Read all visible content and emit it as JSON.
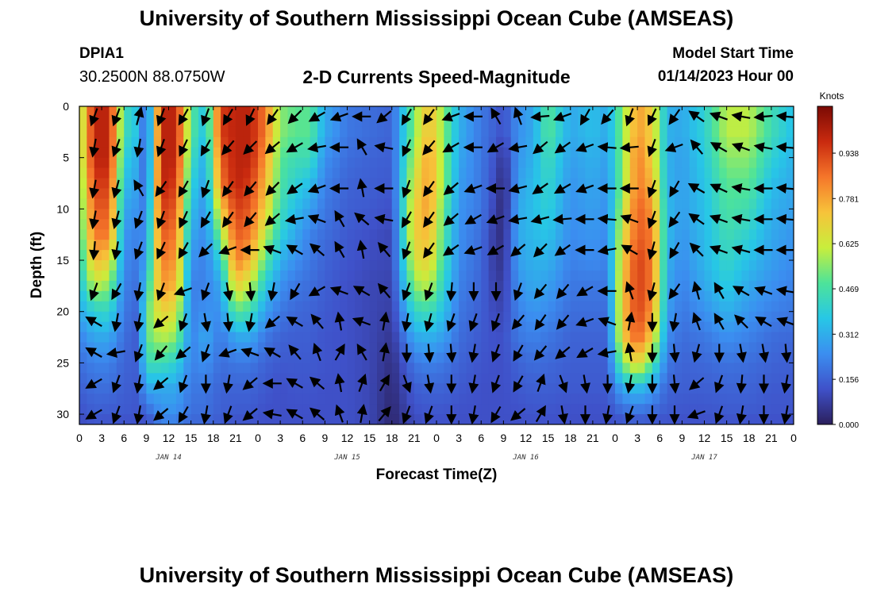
{
  "header": {
    "title": "University of Southern Mississippi Ocean Cube (AMSEAS)",
    "station": "DPIA1",
    "coords": "30.2500N  88.0750W",
    "plot_title": "2-D Currents Speed-Magnitude",
    "start_label": "Model Start Time",
    "start_value": "01/14/2023 Hour 00"
  },
  "footer": {
    "title": "University of Southern Mississippi Ocean Cube (AMSEAS)"
  },
  "chart_data": {
    "type": "heatmap",
    "xlabel": "Forecast Time(Z)",
    "ylabel": "Depth (ft)",
    "xlim": [
      0,
      96
    ],
    "ylim": [
      0,
      31
    ],
    "y_inverted": true,
    "x_tick_labels": [
      "0",
      "3",
      "6",
      "9",
      "12",
      "15",
      "18",
      "21",
      "0",
      "3",
      "6",
      "9",
      "12",
      "15",
      "18",
      "21",
      "0",
      "3",
      "6",
      "9",
      "12",
      "15",
      "18",
      "21",
      "0",
      "3",
      "6",
      "9",
      "12",
      "15",
      "18",
      "21",
      "0"
    ],
    "y_ticks": [
      0,
      5,
      10,
      15,
      20,
      25,
      30
    ],
    "day_labels": [
      {
        "text": "JAN 14",
        "hour": 12
      },
      {
        "text": "JAN 15",
        "hour": 36
      },
      {
        "text": "JAN 16",
        "hour": 60
      },
      {
        "text": "JAN 17",
        "hour": 84
      }
    ],
    "colorbar": {
      "title": "Knots",
      "ticks": [
        "0.000",
        "0.156",
        "0.312",
        "0.469",
        "0.625",
        "0.781",
        "0.938"
      ],
      "range": [
        0,
        1.1
      ],
      "colors": [
        "#2b1f5c",
        "#3f51c9",
        "#3b8ef0",
        "#27c7e6",
        "#4de39a",
        "#c8ee3c",
        "#f7c33a",
        "#f5762a",
        "#c92a0f",
        "#7a0a04"
      ]
    },
    "speed_columns": [
      {
        "hour": 0,
        "speeds": [
          0.55,
          0.55,
          0.55,
          0.5,
          0.48,
          0.45,
          0.4,
          0.35,
          0.3,
          0.22,
          0.18,
          0.15,
          0.12,
          0.1
        ]
      },
      {
        "hour": 2,
        "speeds": [
          1.0,
          1.0,
          1.0,
          0.95,
          0.9,
          0.85,
          0.75,
          0.6,
          0.4,
          0.3,
          0.22,
          0.18,
          0.15,
          0.12
        ]
      },
      {
        "hour": 4,
        "speeds": [
          1.0,
          1.0,
          1.0,
          0.95,
          0.9,
          0.85,
          0.7,
          0.55,
          0.42,
          0.3,
          0.22,
          0.18,
          0.14,
          0.12
        ]
      },
      {
        "hour": 6,
        "speeds": [
          0.45,
          0.45,
          0.4,
          0.35,
          0.3,
          0.26,
          0.24,
          0.22,
          0.2,
          0.18,
          0.16,
          0.15,
          0.14,
          0.12
        ]
      },
      {
        "hour": 8,
        "speeds": [
          0.35,
          0.35,
          0.3,
          0.28,
          0.25,
          0.22,
          0.2,
          0.18,
          0.16,
          0.14,
          0.15,
          0.14,
          0.13,
          0.12
        ]
      },
      {
        "hour": 9,
        "speeds": [
          0.1,
          0.1,
          0.12,
          0.14,
          0.2,
          0.25,
          0.3,
          0.4,
          0.5,
          0.5,
          0.45,
          0.3,
          0.15,
          0.1
        ]
      },
      {
        "hour": 11,
        "speeds": [
          1.0,
          1.0,
          1.0,
          1.0,
          0.95,
          0.9,
          0.85,
          0.8,
          0.7,
          0.6,
          0.45,
          0.3,
          0.25,
          0.2
        ]
      },
      {
        "hour": 13,
        "speeds": [
          1.0,
          1.0,
          1.0,
          0.95,
          0.9,
          0.85,
          0.8,
          0.75,
          0.65,
          0.55,
          0.4,
          0.3,
          0.25,
          0.2
        ]
      },
      {
        "hour": 15,
        "speeds": [
          0.5,
          0.5,
          0.45,
          0.4,
          0.35,
          0.3,
          0.25,
          0.22,
          0.22,
          0.22,
          0.22,
          0.2,
          0.18,
          0.16
        ]
      },
      {
        "hour": 17,
        "speeds": [
          0.35,
          0.35,
          0.3,
          0.28,
          0.25,
          0.24,
          0.22,
          0.22,
          0.25,
          0.3,
          0.25,
          0.2,
          0.18,
          0.16
        ]
      },
      {
        "hour": 19,
        "speeds": [
          0.95,
          0.95,
          0.9,
          0.85,
          0.7,
          0.55,
          0.4,
          0.3,
          0.25,
          0.2,
          0.18,
          0.16,
          0.15,
          0.14
        ]
      },
      {
        "hour": 21,
        "speeds": [
          1.0,
          1.0,
          1.0,
          1.0,
          0.95,
          0.9,
          0.85,
          0.7,
          0.5,
          0.3,
          0.2,
          0.16,
          0.14,
          0.12
        ]
      },
      {
        "hour": 23,
        "speeds": [
          1.0,
          1.0,
          1.0,
          0.95,
          0.9,
          0.85,
          0.75,
          0.6,
          0.45,
          0.3,
          0.2,
          0.16,
          0.14,
          0.12
        ]
      },
      {
        "hour": 25,
        "speeds": [
          0.85,
          0.85,
          0.8,
          0.75,
          0.7,
          0.6,
          0.5,
          0.38,
          0.28,
          0.2,
          0.16,
          0.14,
          0.12,
          0.12
        ]
      },
      {
        "hour": 27,
        "speeds": [
          0.55,
          0.55,
          0.5,
          0.48,
          0.45,
          0.4,
          0.32,
          0.25,
          0.2,
          0.16,
          0.14,
          0.12,
          0.12,
          0.12
        ]
      },
      {
        "hour": 29,
        "speeds": [
          0.5,
          0.5,
          0.45,
          0.4,
          0.35,
          0.3,
          0.25,
          0.2,
          0.17,
          0.15,
          0.14,
          0.13,
          0.12,
          0.12
        ]
      },
      {
        "hour": 31,
        "speeds": [
          0.5,
          0.5,
          0.45,
          0.35,
          0.28,
          0.22,
          0.2,
          0.18,
          0.16,
          0.15,
          0.14,
          0.13,
          0.12,
          0.12
        ]
      },
      {
        "hour": 33,
        "speeds": [
          0.3,
          0.3,
          0.25,
          0.22,
          0.2,
          0.18,
          0.16,
          0.15,
          0.14,
          0.13,
          0.13,
          0.12,
          0.12,
          0.12
        ]
      },
      {
        "hour": 36,
        "speeds": [
          0.2,
          0.2,
          0.18,
          0.16,
          0.15,
          0.14,
          0.13,
          0.12,
          0.12,
          0.12,
          0.12,
          0.12,
          0.12,
          0.12
        ]
      },
      {
        "hour": 39,
        "speeds": [
          0.18,
          0.18,
          0.16,
          0.15,
          0.14,
          0.12,
          0.11,
          0.1,
          0.1,
          0.1,
          0.1,
          0.1,
          0.1,
          0.1
        ]
      },
      {
        "hour": 42,
        "speeds": [
          0.16,
          0.16,
          0.15,
          0.14,
          0.12,
          0.1,
          0.1,
          0.09,
          0.08,
          0.06,
          0.04,
          0.03,
          0.02,
          0.02
        ]
      },
      {
        "hour": 45,
        "speeds": [
          0.55,
          0.55,
          0.6,
          0.65,
          0.7,
          0.7,
          0.65,
          0.55,
          0.42,
          0.3,
          0.2,
          0.15,
          0.12,
          0.1
        ]
      },
      {
        "hour": 47,
        "speeds": [
          0.75,
          0.75,
          0.8,
          0.8,
          0.8,
          0.75,
          0.7,
          0.6,
          0.45,
          0.32,
          0.22,
          0.16,
          0.13,
          0.12
        ]
      },
      {
        "hour": 49,
        "speeds": [
          0.55,
          0.55,
          0.55,
          0.55,
          0.5,
          0.48,
          0.45,
          0.4,
          0.35,
          0.28,
          0.2,
          0.16,
          0.13,
          0.12
        ]
      },
      {
        "hour": 51,
        "speeds": [
          0.32,
          0.32,
          0.3,
          0.28,
          0.26,
          0.25,
          0.24,
          0.22,
          0.2,
          0.18,
          0.16,
          0.14,
          0.12,
          0.12
        ]
      },
      {
        "hour": 54,
        "speeds": [
          0.2,
          0.2,
          0.2,
          0.2,
          0.2,
          0.18,
          0.17,
          0.16,
          0.15,
          0.14,
          0.13,
          0.12,
          0.12,
          0.12
        ]
      },
      {
        "hour": 56,
        "speeds": [
          0.15,
          0.15,
          0.12,
          0.1,
          0.08,
          0.06,
          0.06,
          0.08,
          0.1,
          0.12,
          0.12,
          0.12,
          0.12,
          0.12
        ]
      },
      {
        "hour": 57,
        "speeds": [
          0.12,
          0.12,
          0.05,
          0.02,
          0.02,
          0.04,
          0.06,
          0.08,
          0.1,
          0.12,
          0.12,
          0.12,
          0.12,
          0.12
        ]
      },
      {
        "hour": 59,
        "speeds": [
          0.25,
          0.25,
          0.26,
          0.28,
          0.3,
          0.3,
          0.28,
          0.25,
          0.22,
          0.2,
          0.16,
          0.14,
          0.12,
          0.12
        ]
      },
      {
        "hour": 61,
        "speeds": [
          0.3,
          0.3,
          0.32,
          0.34,
          0.35,
          0.34,
          0.32,
          0.3,
          0.26,
          0.22,
          0.18,
          0.15,
          0.13,
          0.12
        ]
      },
      {
        "hour": 63,
        "speeds": [
          0.5,
          0.5,
          0.45,
          0.42,
          0.4,
          0.36,
          0.32,
          0.28,
          0.24,
          0.2,
          0.17,
          0.15,
          0.13,
          0.12
        ]
      },
      {
        "hour": 66,
        "speeds": [
          0.3,
          0.3,
          0.28,
          0.26,
          0.25,
          0.24,
          0.22,
          0.2,
          0.18,
          0.16,
          0.15,
          0.14,
          0.12,
          0.12
        ]
      },
      {
        "hour": 69,
        "speeds": [
          0.35,
          0.35,
          0.32,
          0.3,
          0.28,
          0.26,
          0.24,
          0.2,
          0.18,
          0.16,
          0.15,
          0.14,
          0.12,
          0.12
        ]
      },
      {
        "hour": 71,
        "speeds": [
          0.3,
          0.3,
          0.28,
          0.26,
          0.25,
          0.24,
          0.22,
          0.2,
          0.18,
          0.16,
          0.15,
          0.14,
          0.12,
          0.12
        ]
      },
      {
        "hour": 73,
        "speeds": [
          0.55,
          0.55,
          0.55,
          0.55,
          0.6,
          0.65,
          0.7,
          0.72,
          0.72,
          0.7,
          0.55,
          0.3,
          0.16,
          0.12
        ]
      },
      {
        "hour": 75,
        "speeds": [
          0.8,
          0.8,
          0.85,
          0.85,
          0.9,
          0.9,
          0.95,
          0.95,
          0.95,
          0.9,
          0.7,
          0.35,
          0.18,
          0.13
        ]
      },
      {
        "hour": 77,
        "speeds": [
          0.7,
          0.7,
          0.7,
          0.75,
          0.8,
          0.85,
          0.85,
          0.85,
          0.8,
          0.7,
          0.5,
          0.28,
          0.16,
          0.12
        ]
      },
      {
        "hour": 79,
        "speeds": [
          0.32,
          0.32,
          0.32,
          0.32,
          0.34,
          0.34,
          0.32,
          0.3,
          0.28,
          0.24,
          0.2,
          0.16,
          0.14,
          0.12
        ]
      },
      {
        "hour": 81,
        "speeds": [
          0.3,
          0.3,
          0.28,
          0.28,
          0.28,
          0.26,
          0.24,
          0.22,
          0.2,
          0.18,
          0.16,
          0.15,
          0.13,
          0.12
        ]
      },
      {
        "hour": 84,
        "speeds": [
          0.4,
          0.4,
          0.38,
          0.36,
          0.35,
          0.34,
          0.33,
          0.3,
          0.25,
          0.2,
          0.17,
          0.15,
          0.13,
          0.12
        ]
      },
      {
        "hour": 87,
        "speeds": [
          0.6,
          0.6,
          0.55,
          0.5,
          0.48,
          0.45,
          0.42,
          0.38,
          0.32,
          0.25,
          0.19,
          0.16,
          0.14,
          0.12
        ]
      },
      {
        "hour": 90,
        "speeds": [
          0.6,
          0.6,
          0.55,
          0.5,
          0.45,
          0.4,
          0.35,
          0.3,
          0.26,
          0.22,
          0.18,
          0.16,
          0.14,
          0.12
        ]
      },
      {
        "hour": 93,
        "speeds": [
          0.45,
          0.45,
          0.4,
          0.35,
          0.32,
          0.3,
          0.28,
          0.25,
          0.22,
          0.18,
          0.16,
          0.14,
          0.13,
          0.12
        ]
      },
      {
        "hour": 96,
        "speeds": [
          0.35,
          0.35,
          0.32,
          0.3,
          0.28,
          0.26,
          0.24,
          0.22,
          0.2,
          0.17,
          0.15,
          0.14,
          0.13,
          0.12
        ]
      }
    ],
    "speed_depths": [
      0,
      2.5,
      5,
      7.5,
      10,
      12.5,
      15,
      17.5,
      20,
      22.5,
      25,
      27.5,
      30,
      31
    ],
    "vector_depths": [
      1,
      4,
      8,
      11,
      14,
      18,
      21,
      24,
      27,
      30
    ],
    "vector_hours": [
      2,
      5,
      8,
      11,
      14,
      17,
      20,
      23,
      26,
      29,
      32,
      35,
      38,
      41,
      44,
      47,
      50,
      53,
      56,
      59,
      62,
      65,
      68,
      71,
      74,
      77,
      80,
      83,
      86,
      89,
      92,
      95
    ],
    "vector_directions_deg": [
      [
        200,
        200,
        15,
        200,
        210,
        200,
        210,
        205,
        215,
        225,
        240,
        250,
        270,
        230,
        210,
        215,
        250,
        270,
        330,
        340,
        265,
        250,
        210,
        220,
        200,
        205,
        215,
        305,
        290,
        280,
        265,
        275
      ],
      [
        190,
        200,
        190,
        200,
        205,
        210,
        220,
        225,
        230,
        240,
        260,
        270,
        330,
        280,
        205,
        220,
        240,
        270,
        240,
        260,
        230,
        235,
        250,
        275,
        265,
        200,
        250,
        320,
        300,
        290,
        280,
        275
      ],
      [
        190,
        195,
        330,
        215,
        210,
        200,
        215,
        220,
        225,
        235,
        250,
        270,
        350,
        270,
        200,
        215,
        230,
        250,
        270,
        255,
        235,
        240,
        250,
        270,
        270,
        200,
        210,
        300,
        295,
        280,
        270,
        275
      ],
      [
        190,
        195,
        200,
        200,
        205,
        210,
        215,
        220,
        230,
        260,
        290,
        330,
        310,
        280,
        210,
        215,
        230,
        240,
        250,
        260,
        255,
        265,
        270,
        275,
        290,
        200,
        215,
        305,
        290,
        280,
        270,
        275
      ],
      [
        185,
        190,
        200,
        205,
        210,
        225,
        250,
        270,
        290,
        300,
        310,
        330,
        350,
        320,
        200,
        215,
        235,
        250,
        240,
        230,
        225,
        235,
        270,
        260,
        300,
        195,
        210,
        315,
        290,
        285,
        270,
        270
      ],
      [
        200,
        210,
        190,
        200,
        250,
        200,
        170,
        175,
        190,
        210,
        240,
        290,
        300,
        320,
        200,
        200,
        185,
        180,
        180,
        200,
        220,
        220,
        240,
        270,
        340,
        195,
        215,
        345,
        330,
        300,
        290,
        280
      ],
      [
        300,
        190,
        190,
        230,
        200,
        170,
        175,
        190,
        230,
        300,
        320,
        350,
        290,
        10,
        190,
        195,
        200,
        200,
        200,
        220,
        215,
        220,
        250,
        290,
        10,
        180,
        190,
        340,
        330,
        315,
        300,
        290
      ],
      [
        300,
        260,
        200,
        220,
        230,
        200,
        250,
        290,
        300,
        320,
        340,
        30,
        330,
        10,
        180,
        175,
        175,
        190,
        200,
        210,
        220,
        230,
        240,
        260,
        350,
        180,
        175,
        195,
        180,
        170,
        170,
        175
      ],
      [
        240,
        200,
        190,
        230,
        200,
        180,
        190,
        230,
        270,
        300,
        310,
        350,
        20,
        30,
        160,
        170,
        180,
        190,
        200,
        210,
        20,
        160,
        170,
        180,
        190,
        180,
        175,
        230,
        200,
        185,
        180,
        190
      ],
      [
        240,
        200,
        190,
        230,
        210,
        190,
        200,
        230,
        280,
        300,
        310,
        340,
        10,
        40,
        200,
        200,
        180,
        190,
        210,
        230,
        30,
        170,
        180,
        190,
        200,
        180,
        180,
        250,
        200,
        190,
        180,
        190
      ]
    ]
  }
}
